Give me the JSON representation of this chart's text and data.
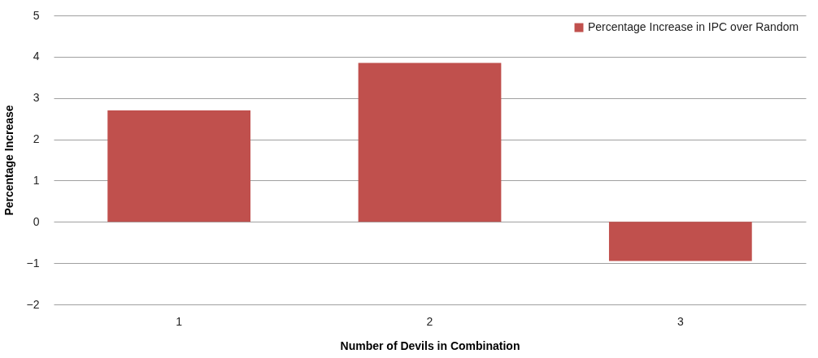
{
  "chart_data": {
    "type": "bar",
    "xlabel": "Number of Devils in Combination",
    "ylabel": "Percentage Increase",
    "categories": [
      "1",
      "2",
      "3"
    ],
    "series": [
      {
        "name": "Percentage Increase in IPC over Random",
        "color": "#c0504d",
        "values": [
          2.7,
          3.85,
          -0.95
        ]
      }
    ],
    "ylim": [
      -2,
      5
    ],
    "yticks": [
      -2,
      -1,
      0,
      1,
      2,
      3,
      4,
      5
    ],
    "grid": "y",
    "legend": "top right"
  }
}
